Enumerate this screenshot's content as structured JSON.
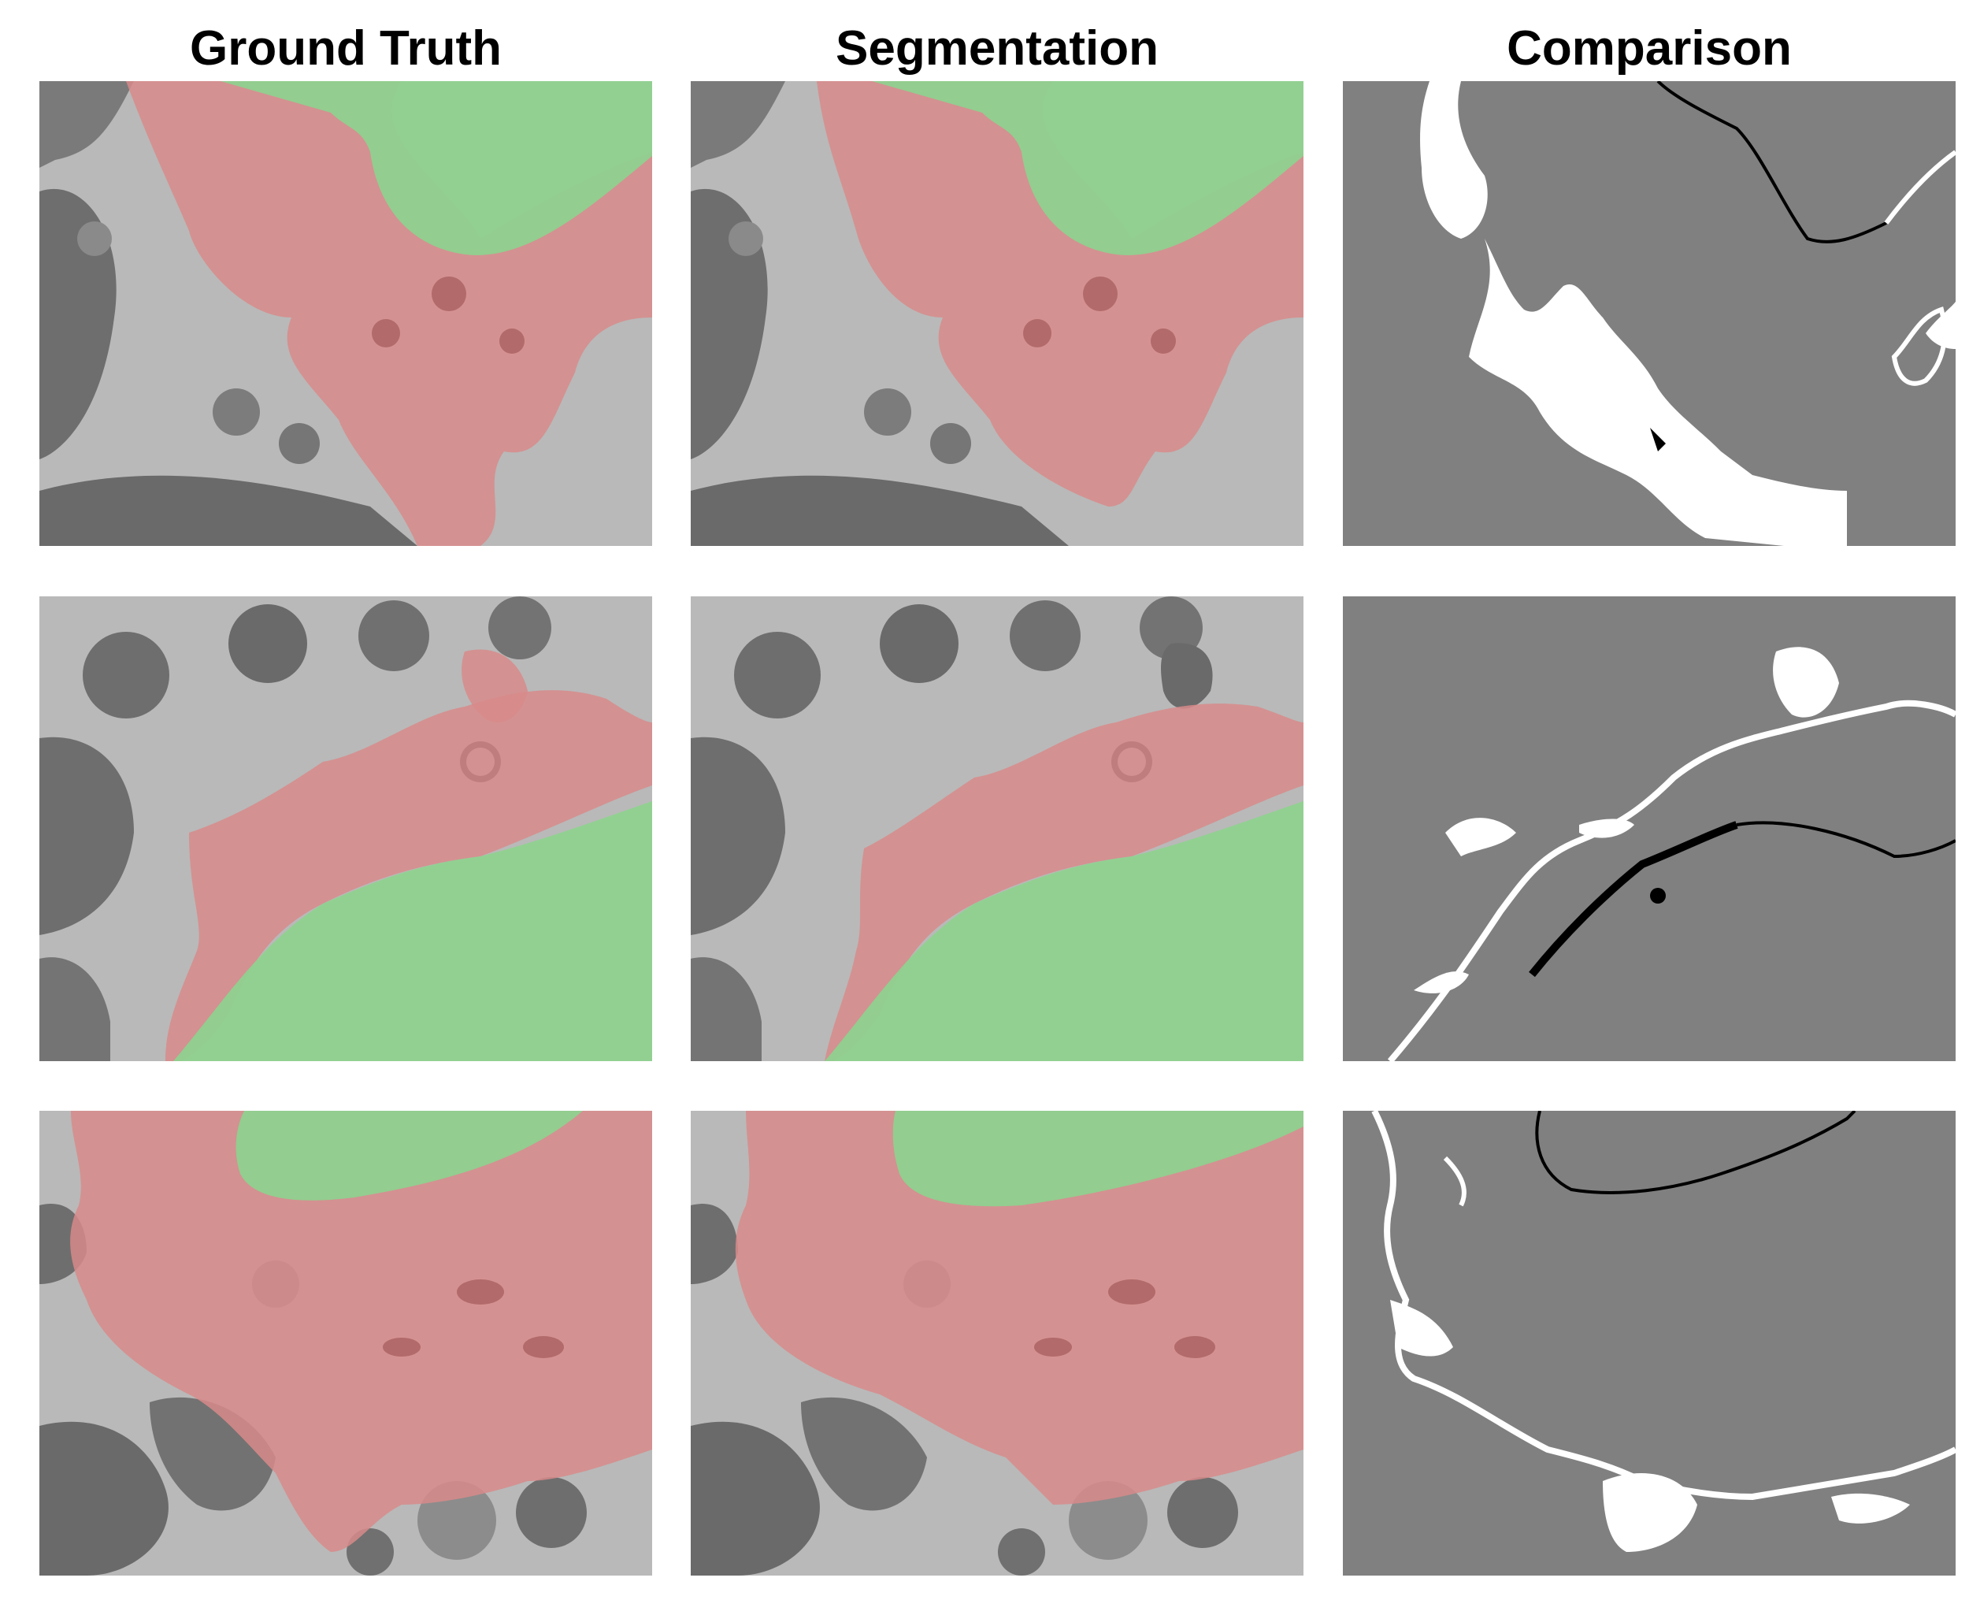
{
  "columns": [
    "Ground Truth",
    "Segmentation",
    "Comparison"
  ],
  "colors": {
    "background_tissue": "#b9b9b9",
    "cell_dark": "#6e6e6e",
    "nucleus_overlay": "#8fd18f",
    "cytoplasm_overlay": "#d88a8a",
    "comparison_bg": "#808080",
    "comparison_fp": "#ffffff",
    "comparison_fn": "#000000"
  }
}
